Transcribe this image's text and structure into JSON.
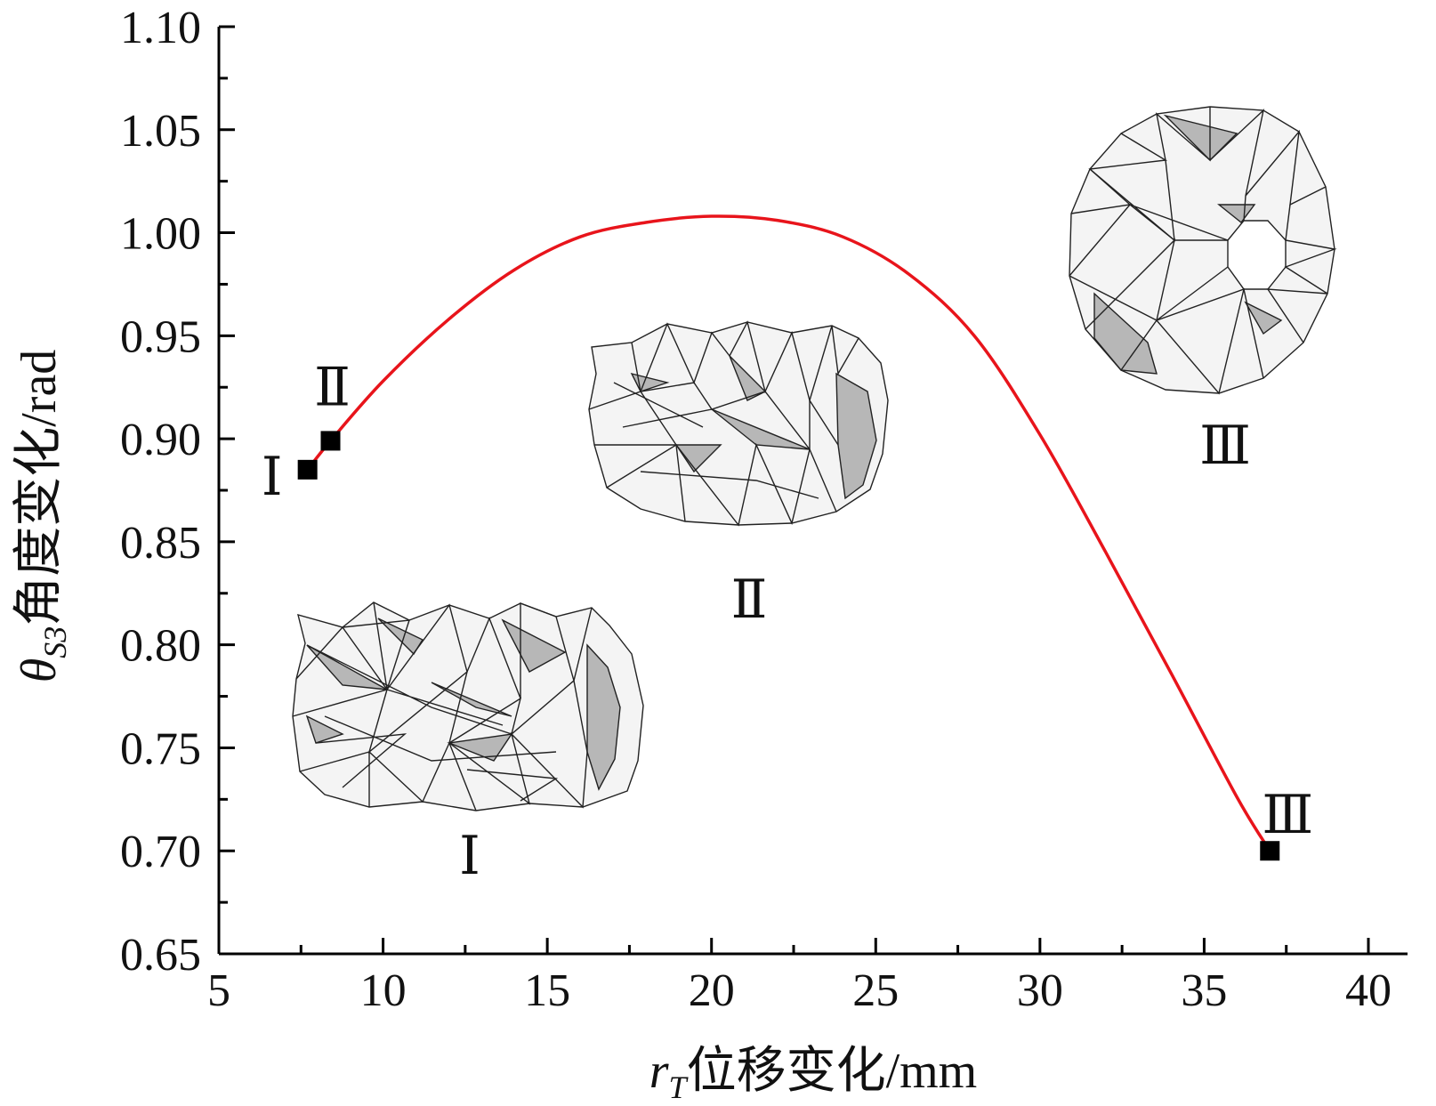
{
  "chart_data": {
    "type": "line",
    "title": "",
    "xlabel": {
      "var": "r",
      "sub": "T",
      "text": "位移变化/mm"
    },
    "ylabel": {
      "var": "θ",
      "sub": "S3",
      "text": "角度变化/rad"
    },
    "xlim": [
      5,
      40
    ],
    "ylim": [
      0.65,
      1.1
    ],
    "x_ticks": [
      "5",
      "10",
      "15",
      "20",
      "25",
      "30",
      "35",
      "40"
    ],
    "y_ticks": [
      "0.65",
      "0.70",
      "0.75",
      "0.80",
      "0.85",
      "0.90",
      "0.95",
      "1.00",
      "1.05",
      "1.10"
    ],
    "grid": false,
    "line_color": "#e8141b",
    "marker_color": "#000000",
    "series": [
      {
        "x": [
          7.7,
          8.4,
          10,
          12,
          14,
          16,
          18,
          20,
          22,
          24,
          26,
          28,
          30,
          32,
          34,
          36,
          37
        ],
        "y": [
          0.885,
          0.899,
          0.928,
          0.958,
          0.982,
          0.998,
          1.005,
          1.008,
          1.006,
          0.998,
          0.98,
          0.95,
          0.902,
          0.845,
          0.786,
          0.726,
          0.7
        ]
      }
    ],
    "markers": [
      {
        "label": "Ⅰ",
        "x": 7.7,
        "y": 0.885
      },
      {
        "label": "Ⅱ",
        "x": 8.4,
        "y": 0.899
      },
      {
        "label": "Ⅲ",
        "x": 37.0,
        "y": 0.7
      }
    ],
    "insets": [
      {
        "label": "Ⅰ",
        "shape": "origami-tube-expanded"
      },
      {
        "label": "Ⅱ",
        "shape": "origami-tube-intermediate"
      },
      {
        "label": "Ⅲ",
        "shape": "origami-tube-folded-end-view"
      }
    ]
  }
}
